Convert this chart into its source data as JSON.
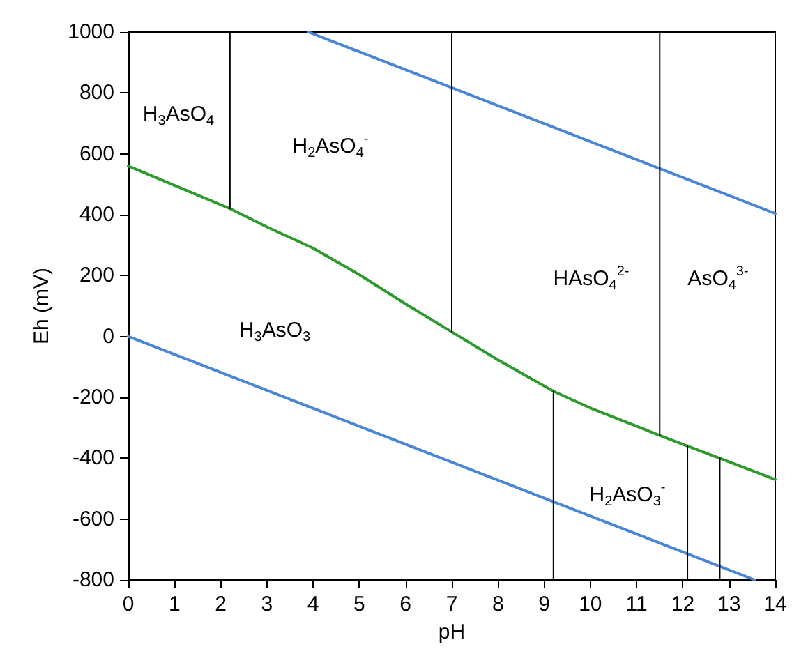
{
  "chart_data": {
    "type": "line",
    "xlabel": "pH",
    "ylabel": "Eh (mV)",
    "xlim": [
      0,
      14
    ],
    "xticks": [
      0,
      1,
      2,
      3,
      4,
      5,
      6,
      7,
      8,
      9,
      10,
      11,
      12,
      13,
      14
    ],
    "ylim": [
      -800,
      1000
    ],
    "yticks": [
      -800,
      -600,
      -400,
      -200,
      0,
      200,
      400,
      600,
      800,
      1000
    ],
    "grid": false,
    "marker": "none",
    "line_style": "solid",
    "series": [
      {
        "color": "#4a86d8",
        "x": [
          3.9,
          14
        ],
        "values": [
          1000,
          404
        ]
      },
      {
        "color": "#4a86d8",
        "x": [
          0,
          13.56
        ],
        "values": [
          0,
          -800
        ]
      },
      {
        "color": "#2e9a2e",
        "x": [
          0,
          2.2,
          3,
          4,
          5,
          6,
          7,
          8,
          9.2,
          10,
          11,
          11.5,
          12.1,
          12.8,
          14
        ],
        "values": [
          560,
          420,
          360,
          290,
          203,
          107,
          15,
          -77,
          -180,
          -235,
          -295,
          -325,
          -360,
          -400,
          -470
        ]
      },
      {
        "color": "#000000",
        "x": [
          2.2,
          2.2
        ],
        "values": [
          420,
          1000
        ]
      },
      {
        "color": "#000000",
        "x": [
          7,
          7
        ],
        "values": [
          15,
          1000
        ]
      },
      {
        "color": "#000000",
        "x": [
          11.5,
          11.5
        ],
        "values": [
          -325,
          1000
        ]
      },
      {
        "color": "#000000",
        "x": [
          9.2,
          9.2
        ],
        "values": [
          -180,
          -800
        ]
      },
      {
        "color": "#000000",
        "x": [
          12.1,
          12.1
        ],
        "values": [
          -360,
          -800
        ]
      },
      {
        "color": "#000000",
        "x": [
          12.8,
          12.8
        ],
        "values": [
          -400,
          -800
        ]
      }
    ],
    "annotations": [
      "H$_{3}$AsO$_{4}$",
      "H$_{2}$AsO$_{4}$$^{-}$",
      "HAsO$_{4}$$^{2-}$",
      "AsO$_{4}$$^{3-}$",
      "H$_{3}$AsO$_{3}$",
      "H$_{2}$AsO$_{3}$$^{-}$"
    ]
  }
}
